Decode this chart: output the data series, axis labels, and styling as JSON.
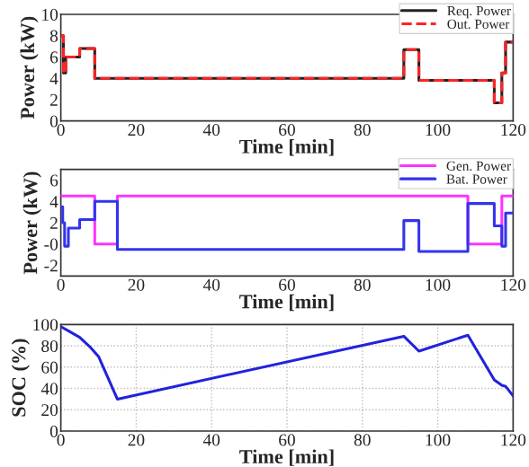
{
  "chart_data": [
    {
      "type": "step",
      "xlabel": "Time [min]",
      "ylabel": "Power (kW)",
      "xlim": [
        0,
        120
      ],
      "xticks": [
        0,
        20,
        40,
        60,
        80,
        100,
        120
      ],
      "ylim": [
        0,
        10
      ],
      "yticks": [
        0,
        2,
        4,
        6,
        8,
        10
      ],
      "legend": "top right",
      "grid": false,
      "series": [
        {
          "name": "Req. Power",
          "color": "#222222",
          "line_style": "solid",
          "x": [
            0,
            0.7,
            1.3,
            2,
            5,
            9,
            91,
            95,
            115,
            117,
            118,
            120
          ],
          "values": [
            8,
            4.5,
            6,
            6,
            6.8,
            4,
            6.7,
            3.8,
            1.7,
            4.5,
            7.4,
            7.4
          ]
        },
        {
          "name": "Out. Power",
          "color": "#ff2222",
          "line_style": "dashed",
          "x": [
            0,
            0.7,
            1.3,
            2,
            5,
            9,
            91,
            95,
            115,
            117,
            118,
            120
          ],
          "values": [
            8,
            4.5,
            6,
            6,
            6.8,
            4,
            6.7,
            3.8,
            1.7,
            4.5,
            7.4,
            7.4
          ]
        }
      ]
    },
    {
      "type": "step",
      "xlabel": "Time [min]",
      "ylabel": "Power (kW)",
      "xlim": [
        0,
        120
      ],
      "xticks": [
        0,
        20,
        40,
        60,
        80,
        100,
        120
      ],
      "ylim": [
        -3,
        7
      ],
      "yticks": [
        -2,
        {
          "value": 0,
          "label": "-0"
        },
        2,
        4,
        6
      ],
      "legend": "top right",
      "grid": false,
      "series": [
        {
          "name": "Gen. Power",
          "color": "#ff33ff",
          "line_style": "solid",
          "x": [
            0,
            9,
            15,
            108,
            117,
            120
          ],
          "values": [
            4.5,
            0,
            4.5,
            0,
            4.5,
            4.5
          ]
        },
        {
          "name": "Bat. Power",
          "color": "#3333ee",
          "line_style": "solid",
          "x": [
            0,
            0.5,
            1,
            2,
            5,
            9,
            15,
            91,
            95,
            108,
            115,
            117,
            118,
            120
          ],
          "values": [
            3.5,
            2,
            -0.2,
            1.5,
            2.3,
            4,
            -0.5,
            2.2,
            -0.7,
            3.8,
            1.7,
            -0.2,
            2.9,
            2.9
          ]
        }
      ]
    },
    {
      "type": "line",
      "xlabel": "Time [min]",
      "ylabel": "SOC (%)",
      "xlim": [
        0,
        120
      ],
      "xticks": [
        0,
        20,
        40,
        60,
        80,
        100,
        120
      ],
      "ylim": [
        0,
        100
      ],
      "yticks": [
        0,
        20,
        40,
        60,
        80,
        100
      ],
      "grid": true,
      "series": [
        {
          "color": "#2222dd",
          "line_style": "solid",
          "x": [
            0,
            2,
            5,
            8,
            10,
            15,
            91,
            95,
            108,
            113,
            115,
            117,
            118,
            120
          ],
          "values": [
            98,
            94,
            88,
            78,
            70,
            30,
            89,
            75,
            90,
            60,
            48,
            43,
            42,
            33
          ]
        }
      ]
    }
  ]
}
